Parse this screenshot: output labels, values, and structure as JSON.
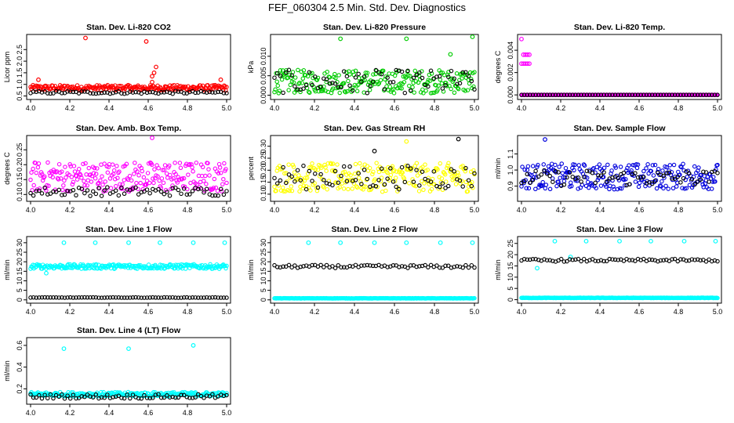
{
  "figure": {
    "title": "FEF_060304  2.5 Min. Std. Dev. Diagnostics"
  },
  "chart_data": [
    {
      "type": "scatter",
      "title": "Stan. Dev. Li-820 CO2",
      "ylabel": "Licor ppm",
      "xlim": [
        4.0,
        5.0
      ],
      "ylim": [
        0.45,
        3.05
      ],
      "x_ticks": [
        "4.0",
        "4.2",
        "4.4",
        "4.6",
        "4.8",
        "5.0"
      ],
      "y_ticks": [
        0.5,
        1.0,
        1.5,
        2.0,
        2.5
      ],
      "y_tick_labels": [
        "0.5",
        "1.0",
        "1.5",
        "2.0",
        "2.5"
      ],
      "series": [
        {
          "color": "#ff0000",
          "base": 0.85,
          "spread": 0.12,
          "outliers": [
            [
              4.04,
              1.2
            ],
            [
              4.28,
              3.0
            ],
            [
              4.59,
              2.85
            ],
            [
              4.62,
              1.35
            ],
            [
              4.63,
              1.5
            ],
            [
              4.64,
              1.75
            ],
            [
              4.62,
              1.1
            ],
            [
              4.97,
              1.2
            ]
          ]
        },
        {
          "color": "#000000",
          "base": 0.65,
          "spread": 0.06,
          "outliers": []
        }
      ]
    },
    {
      "type": "scatter",
      "title": "Stan. Dev. Li-820 Pressure",
      "ylabel": "kPa",
      "xlim": [
        4.0,
        5.0
      ],
      "ylim": [
        -0.0005,
        0.015
      ],
      "x_ticks": [
        "4.0",
        "4.2",
        "4.4",
        "4.6",
        "4.8",
        "5.0"
      ],
      "y_ticks": [
        0.0,
        0.005,
        0.01
      ],
      "y_tick_labels": [
        "0.000",
        "0.005",
        "0.010"
      ],
      "series": [
        {
          "color": "#00cc00",
          "base": 0.0035,
          "spread": 0.003,
          "outliers": [
            [
              4.33,
              0.0145
            ],
            [
              4.66,
              0.0145
            ],
            [
              4.88,
              0.0105
            ],
            [
              4.99,
              0.015
            ]
          ]
        },
        {
          "color": "#000000",
          "base": 0.0035,
          "spread": 0.003,
          "outliers": []
        }
      ]
    },
    {
      "type": "scatter",
      "title": "Stan. Dev. Li-820 Temp.",
      "ylabel": "degrees C",
      "xlim": [
        4.0,
        5.0
      ],
      "ylim": [
        -0.0002,
        0.0052
      ],
      "x_ticks": [
        "4.0",
        "4.2",
        "4.4",
        "4.6",
        "4.8",
        "5.0"
      ],
      "y_ticks": [
        0.0,
        0.002,
        0.004
      ],
      "y_tick_labels": [
        "0.000",
        "0.002",
        "0.004"
      ],
      "series": [
        {
          "color": "#ff00ff",
          "base": 0.0,
          "spread": 0.0,
          "outliers": [
            [
              4.0,
              0.005
            ],
            [
              4.01,
              0.0036
            ],
            [
              4.02,
              0.0036
            ],
            [
              4.03,
              0.0036
            ],
            [
              4.04,
              0.0036
            ],
            [
              4.0,
              0.0028
            ],
            [
              4.01,
              0.0028
            ],
            [
              4.02,
              0.0028
            ],
            [
              4.03,
              0.0028
            ],
            [
              4.04,
              0.0028
            ]
          ]
        },
        {
          "color": "#000000",
          "base": 0.0,
          "spread": 0.0,
          "outliers": []
        }
      ]
    },
    {
      "type": "scatter",
      "title": "Stan. Dev. Amb. Box Temp.",
      "ylabel": "degrees C",
      "xlim": [
        4.0,
        5.0
      ],
      "ylim": [
        0.085,
        0.29
      ],
      "x_ticks": [
        "4.0",
        "4.2",
        "4.4",
        "4.6",
        "4.8",
        "5.0"
      ],
      "y_ticks": [
        0.1,
        0.15,
        0.2,
        0.25
      ],
      "y_tick_labels": [
        "0.10",
        "0.15",
        "0.20",
        "0.25"
      ],
      "series": [
        {
          "color": "#ff00ff",
          "base": 0.16,
          "spread": 0.05,
          "outliers": [
            [
              4.62,
              0.29
            ]
          ]
        },
        {
          "color": "#000000",
          "base": 0.11,
          "spread": 0.015,
          "outliers": []
        }
      ]
    },
    {
      "type": "scatter",
      "title": "Stan. Dev. Gas Stream RH",
      "ylabel": "percent",
      "xlim": [
        4.0,
        5.0
      ],
      "ylim": [
        0.08,
        0.335
      ],
      "x_ticks": [
        "4.0",
        "4.2",
        "4.4",
        "4.6",
        "4.8",
        "5.0"
      ],
      "y_ticks": [
        0.1,
        0.15,
        0.2,
        0.25,
        0.3
      ],
      "y_tick_labels": [
        "0.10",
        "0.15",
        "0.20",
        "0.25",
        "0.30"
      ],
      "series": [
        {
          "color": "#ffff00",
          "base": 0.17,
          "spread": 0.06,
          "outliers": [
            [
              4.66,
              0.32
            ]
          ]
        },
        {
          "color": "#000000",
          "base": 0.17,
          "spread": 0.05,
          "outliers": [
            [
              4.92,
              0.33
            ],
            [
              4.5,
              0.28
            ]
          ]
        }
      ]
    },
    {
      "type": "scatter",
      "title": "Stan. Dev. Sample Flow",
      "ylabel": "ml/min",
      "xlim": [
        4.0,
        5.0
      ],
      "ylim": [
        0.82,
        1.2
      ],
      "x_ticks": [
        "4.0",
        "4.2",
        "4.4",
        "4.6",
        "4.8",
        "5.0"
      ],
      "y_ticks": [
        0.9,
        1.0,
        1.1
      ],
      "y_tick_labels": [
        "0.9",
        "1.0",
        "1.1"
      ],
      "series": [
        {
          "color": "#0000dd",
          "base": 0.96,
          "spread": 0.08,
          "outliers": [
            [
              4.12,
              1.19
            ]
          ]
        },
        {
          "color": "#000000",
          "base": 0.95,
          "spread": 0.05,
          "outliers": []
        }
      ]
    },
    {
      "type": "scatter",
      "title": "Stan. Dev. Line 1 Flow",
      "ylabel": "ml/min",
      "xlim": [
        4.0,
        5.0
      ],
      "ylim": [
        -0.5,
        32
      ],
      "x_ticks": [
        "4.0",
        "4.2",
        "4.4",
        "4.6",
        "4.8",
        "5.0"
      ],
      "y_ticks": [
        0,
        5,
        10,
        15,
        20,
        25,
        30
      ],
      "y_tick_labels": [
        "0",
        "5",
        "10",
        "15",
        "20",
        "25",
        "30"
      ],
      "series": [
        {
          "color": "#00ffff",
          "base": 17.5,
          "spread": 1.2,
          "outliers": [
            [
              4.17,
              30
            ],
            [
              4.33,
              30
            ],
            [
              4.5,
              30
            ],
            [
              4.66,
              30
            ],
            [
              4.83,
              30
            ],
            [
              4.99,
              30
            ],
            [
              4.08,
              14
            ]
          ]
        },
        {
          "color": "#000000",
          "base": 1.2,
          "spread": 0.1,
          "outliers": []
        }
      ]
    },
    {
      "type": "scatter",
      "title": "Stan. Dev. Line 2 Flow",
      "ylabel": "ml/min",
      "xlim": [
        4.0,
        5.0
      ],
      "ylim": [
        -0.5,
        32
      ],
      "x_ticks": [
        "4.0",
        "4.2",
        "4.4",
        "4.6",
        "4.8",
        "5.0"
      ],
      "y_ticks": [
        0,
        5,
        10,
        15,
        20,
        25,
        30
      ],
      "y_tick_labels": [
        "0",
        "5",
        "10",
        "15",
        "20",
        "25",
        "30"
      ],
      "series": [
        {
          "color": "#00ffff",
          "base": 0.8,
          "spread": 0.1,
          "outliers": [
            [
              4.17,
              30
            ],
            [
              4.33,
              30
            ],
            [
              4.5,
              30
            ],
            [
              4.66,
              30
            ],
            [
              4.83,
              30
            ],
            [
              4.99,
              30
            ]
          ]
        },
        {
          "color": "#000000",
          "base": 17.5,
          "spread": 0.8,
          "outliers": []
        }
      ]
    },
    {
      "type": "scatter",
      "title": "Stan. Dev. Line 3 Flow",
      "ylabel": "ml/min",
      "xlim": [
        4.0,
        5.0
      ],
      "ylim": [
        -0.5,
        27
      ],
      "x_ticks": [
        "4.0",
        "4.2",
        "4.4",
        "4.6",
        "4.8",
        "5.0"
      ],
      "y_ticks": [
        0,
        5,
        10,
        15,
        20,
        25
      ],
      "y_tick_labels": [
        "0",
        "5",
        "10",
        "15",
        "20",
        "25"
      ],
      "series": [
        {
          "color": "#00ffff",
          "base": 0.8,
          "spread": 0.1,
          "outliers": [
            [
              4.17,
              26
            ],
            [
              4.33,
              26
            ],
            [
              4.5,
              26
            ],
            [
              4.66,
              26
            ],
            [
              4.83,
              26
            ],
            [
              4.99,
              26
            ],
            [
              4.08,
              14
            ],
            [
              4.25,
              19
            ]
          ]
        },
        {
          "color": "#000000",
          "base": 17.5,
          "spread": 0.6,
          "outliers": []
        }
      ]
    },
    {
      "type": "scatter",
      "title": "Stan. Dev. Line 4 (LT) Flow",
      "ylabel": "ml/min",
      "xlim": [
        4.0,
        5.0
      ],
      "ylim": [
        0.08,
        0.65
      ],
      "x_ticks": [
        "4.0",
        "4.2",
        "4.4",
        "4.6",
        "4.8",
        "5.0"
      ],
      "y_ticks": [
        0.2,
        0.4,
        0.6
      ],
      "y_tick_labels": [
        "0.2",
        "0.4",
        "0.6"
      ],
      "series": [
        {
          "color": "#00ffff",
          "base": 0.15,
          "spread": 0.02,
          "outliers": [
            [
              4.17,
              0.57
            ],
            [
              4.5,
              0.57
            ],
            [
              4.83,
              0.6
            ]
          ]
        },
        {
          "color": "#000000",
          "base": 0.13,
          "spread": 0.02,
          "outliers": []
        }
      ]
    }
  ]
}
